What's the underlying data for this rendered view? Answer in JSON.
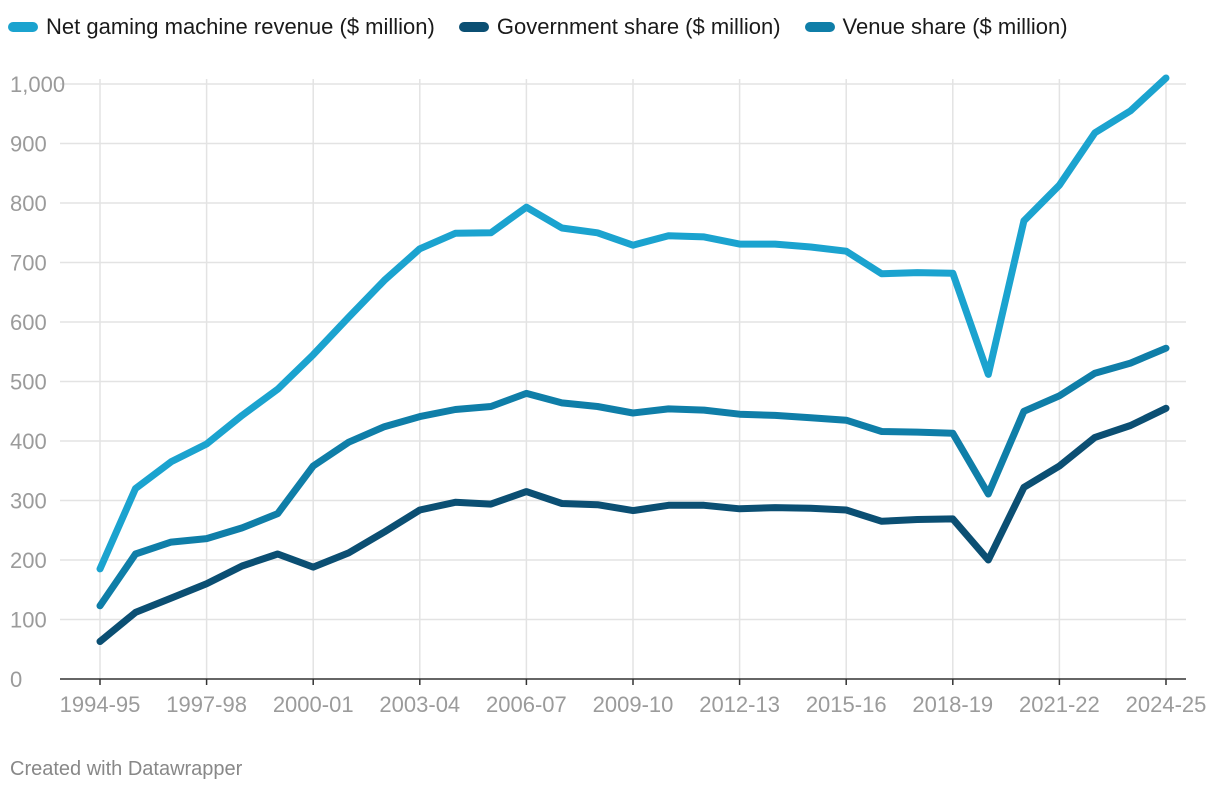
{
  "chart_data": {
    "type": "line",
    "title": "",
    "xlabel": "",
    "ylabel": "",
    "ylim": [
      0,
      1000
    ],
    "yticks": [
      0,
      100,
      200,
      300,
      400,
      500,
      600,
      700,
      800,
      900,
      1000
    ],
    "ytick_labels": [
      "0",
      "100",
      "200",
      "300",
      "400",
      "500",
      "600",
      "700",
      "800",
      "900",
      "1,000"
    ],
    "categories": [
      "1994-95",
      "1995-96",
      "1996-97",
      "1997-98",
      "1998-99",
      "1999-00",
      "2000-01",
      "2001-02",
      "2002-03",
      "2003-04",
      "2004-05",
      "2005-06",
      "2006-07",
      "2007-08",
      "2008-09",
      "2009-10",
      "2010-11",
      "2011-12",
      "2012-13",
      "2013-14",
      "2014-15",
      "2015-16",
      "2016-17",
      "2017-18",
      "2018-19",
      "2019-20",
      "2020-21",
      "2021-22",
      "2022-23",
      "2023-24",
      "2024-25"
    ],
    "xtick_labels": [
      "1994-95",
      "1997-98",
      "2000-01",
      "2003-04",
      "2006-07",
      "2009-10",
      "2012-13",
      "2015-16",
      "2018-19",
      "2021-22",
      "2024-25"
    ],
    "grid": true,
    "legend_position": "top-left",
    "series": [
      {
        "name": "Net gaming machine revenue ($ million)",
        "color": "#1ba3cf",
        "values": [
          185,
          320,
          365,
          395,
          443,
          487,
          545,
          608,
          670,
          723,
          749,
          750,
          793,
          758,
          750,
          729,
          745,
          743,
          731,
          731,
          726,
          719,
          681,
          683,
          682,
          512,
          770,
          830,
          918,
          955,
          1010
        ]
      },
      {
        "name": "Government share ($ million)",
        "color": "#0b4f73",
        "values": [
          63,
          112,
          136,
          160,
          190,
          210,
          188,
          212,
          247,
          284,
          297,
          294,
          315,
          295,
          293,
          283,
          292,
          292,
          286,
          288,
          287,
          284,
          265,
          268,
          269,
          200,
          322,
          358,
          406,
          426,
          455
        ]
      },
      {
        "name": "Venue share ($ million)",
        "color": "#0f7ea8",
        "values": [
          123,
          210,
          230,
          236,
          254,
          278,
          358,
          398,
          424,
          441,
          453,
          458,
          480,
          464,
          458,
          447,
          454,
          452,
          445,
          443,
          439,
          435,
          416,
          415,
          413,
          311,
          450,
          476,
          514,
          531,
          556
        ]
      }
    ]
  },
  "footer": {
    "credit": "Created with Datawrapper"
  }
}
